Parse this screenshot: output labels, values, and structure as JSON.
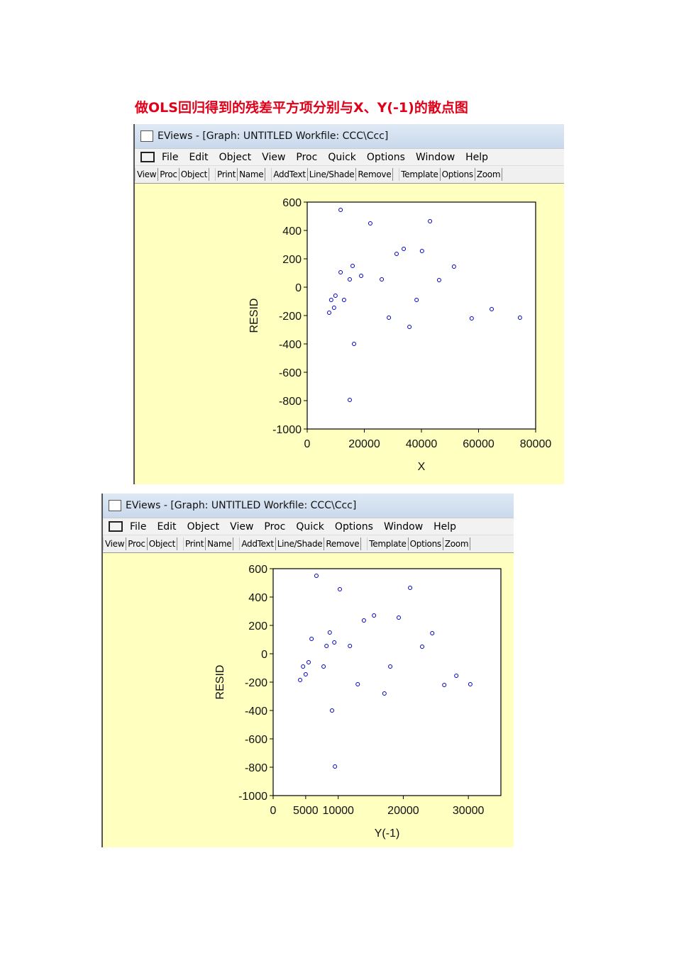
{
  "heading": "做OLS回归得到的残差平方项分别与X、Y(-1)的散点图",
  "windows": [
    {
      "title": "EViews - [Graph: UNTITLED   Workfile: CCC\\Ccc]",
      "menu": [
        "File",
        "Edit",
        "Object",
        "View",
        "Proc",
        "Quick",
        "Options",
        "Window",
        "Help"
      ],
      "toolbar": [
        [
          "View",
          "Proc",
          "Object"
        ],
        [
          "Print",
          "Name"
        ],
        [
          "AddText",
          "Line/Shade",
          "Remove"
        ],
        [
          "Template",
          "Options",
          "Zoom"
        ]
      ]
    },
    {
      "title": "EViews - [Graph: UNTITLED   Workfile: CCC\\Ccc]",
      "menu": [
        "File",
        "Edit",
        "Object",
        "View",
        "Proc",
        "Quick",
        "Options",
        "Window",
        "Help"
      ],
      "toolbar": [
        [
          "View",
          "Proc",
          "Object"
        ],
        [
          "Print",
          "Name"
        ],
        [
          "AddText",
          "Line/Shade",
          "Remove"
        ],
        [
          "Template",
          "Options",
          "Zoom"
        ]
      ]
    }
  ],
  "chart_data": [
    {
      "type": "scatter",
      "x_label": "X",
      "y_label": "RESID",
      "color": "#0000c0",
      "x": [
        11700,
        22100,
        43000,
        31300,
        33800,
        40200,
        15900,
        11700,
        18900,
        14900,
        26100,
        46200,
        51400,
        9900,
        8400,
        12900,
        9400,
        7700,
        38300,
        28600,
        35800,
        57600,
        64600,
        74500,
        16400,
        14900
      ],
      "values": [
        545,
        450,
        465,
        235,
        270,
        255,
        150,
        105,
        80,
        55,
        55,
        50,
        145,
        -60,
        -90,
        -90,
        -145,
        -180,
        -90,
        -215,
        -280,
        -220,
        -155,
        -215,
        -400,
        -795
      ],
      "xlim": [
        0,
        80000
      ],
      "xticks": [
        0,
        20000,
        40000,
        60000,
        80000
      ],
      "ylim": [
        -1000,
        600
      ],
      "yticks": [
        -1000,
        -800,
        -600,
        -400,
        -200,
        0,
        200,
        400,
        600
      ]
    },
    {
      "type": "scatter",
      "x_label": "Y(-1)",
      "y_label": "RESID",
      "color": "#0000c0",
      "x": [
        6650,
        10250,
        21050,
        13950,
        15500,
        19300,
        8700,
        5900,
        9400,
        8200,
        11800,
        22900,
        24450,
        5450,
        4600,
        7750,
        5000,
        4150,
        18000,
        13000,
        17100,
        26300,
        28150,
        30300,
        9050,
        9500
      ],
      "values": [
        550,
        455,
        465,
        235,
        270,
        255,
        150,
        105,
        80,
        55,
        55,
        50,
        145,
        -60,
        -90,
        -90,
        -145,
        -185,
        -90,
        -215,
        -280,
        -220,
        -155,
        -215,
        -400,
        -795
      ],
      "xlim": [
        0,
        35000
      ],
      "xticks": [
        0,
        5000,
        10000,
        20000,
        30000
      ],
      "ylim": [
        -1000,
        600
      ],
      "yticks": [
        -1000,
        -800,
        -600,
        -400,
        -200,
        0,
        200,
        400,
        600
      ]
    }
  ]
}
